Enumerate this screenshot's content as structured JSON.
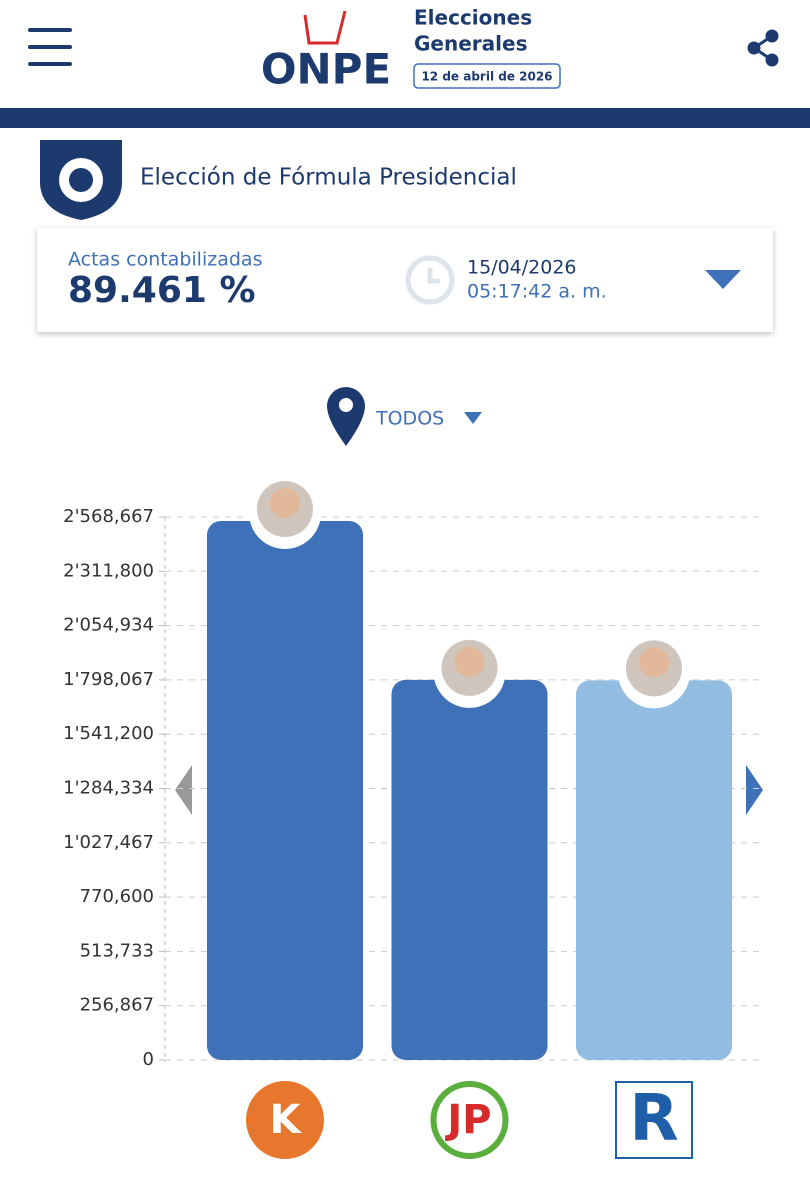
{
  "header": {
    "brand": "ONPE",
    "event_line1": "Elecciones",
    "event_line2": "Generales",
    "event_date": "12 de abril de 2026"
  },
  "section_title": "Elección de Fórmula Presidencial",
  "summary": {
    "label": "Actas contabilizadas",
    "percent": "89.461 %",
    "date": "15/04/2026",
    "time": "05:17:42 a. m."
  },
  "filter": "TODOS",
  "logos": [
    "K",
    "JP",
    "R"
  ],
  "chart_data": {
    "type": "bar",
    "categories": [
      null,
      null,
      null
    ],
    "values": [
      2550000,
      1798000,
      1796000
    ],
    "colors": [
      "#3e71b7",
      "#3e71b7",
      "#93bce3"
    ],
    "ylim": [
      0,
      2568667
    ],
    "yticks": [
      0,
      {
        "value": 256867,
        "label": "256,867"
      },
      {
        "value": 513733,
        "label": "513,733"
      },
      {
        "value": 770600,
        "label": "770,600"
      },
      {
        "value": 1027467,
        "label": "1'027,467"
      },
      {
        "value": 1284334,
        "label": "1'284,334"
      },
      {
        "value": 1541200,
        "label": "1'541,200"
      },
      {
        "value": 1798067,
        "label": "1'798,067"
      },
      {
        "value": 2054934,
        "label": "2'054,934"
      },
      {
        "value": 2311800,
        "label": "2'311,800"
      },
      {
        "value": 2568667,
        "label": "2'568,667"
      }
    ],
    "grid": true
  }
}
